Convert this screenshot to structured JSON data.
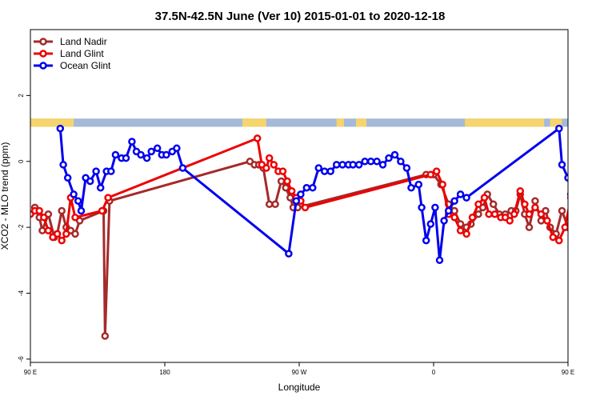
{
  "chart_data": {
    "type": "line",
    "title": "37.5N-42.5N June (Ver 10)   2015-01-01 to 2020-12-18",
    "xlabel": "Longitude",
    "ylabel": "XCO2 - MLO trend (ppm)",
    "xlim": [
      90,
      450
    ],
    "ylim": [
      -6.1,
      4.0
    ],
    "x_ticks": [
      {
        "value": 90,
        "label": "90 E"
      },
      {
        "value": 180,
        "label": "180"
      },
      {
        "value": 270,
        "label": "90 W"
      },
      {
        "value": 360,
        "label": "0"
      },
      {
        "value": 450,
        "label": "90 E"
      },
      {
        "value": 540,
        "label": "180"
      }
    ],
    "y_ticks": [
      {
        "value": -6,
        "label": "-6"
      },
      {
        "value": -4,
        "label": "-4"
      },
      {
        "value": -2,
        "label": "-2"
      },
      {
        "value": 0,
        "label": "0"
      },
      {
        "value": 2,
        "label": "2"
      }
    ],
    "legend_position": "top-left",
    "map_strip": {
      "y_range": [
        1.05,
        1.3
      ],
      "ocean_color": "#a4bad8",
      "land_color": "#f6d46e",
      "land_ranges": [
        [
          90,
          117
        ],
        [
          117,
          119
        ],
        [
          232,
          248
        ],
        [
          295,
          300
        ],
        [
          308,
          315
        ],
        [
          381,
          434
        ],
        [
          438,
          446
        ]
      ]
    },
    "series": [
      {
        "name": "Land Nadir",
        "color": "#a52a2a",
        "points": [
          [
            93,
            -1.4
          ],
          [
            96,
            -1.7
          ],
          [
            98,
            -2.1
          ],
          [
            102,
            -1.6
          ],
          [
            106,
            -2.3
          ],
          [
            108,
            -2.2
          ],
          [
            111,
            -1.5
          ],
          [
            114,
            -2.0
          ],
          [
            117,
            -2.1
          ],
          [
            120,
            -2.2
          ],
          [
            123,
            -1.8
          ],
          [
            139,
            -1.5
          ],
          [
            140,
            -5.3
          ],
          [
            143,
            -1.2
          ],
          [
            237,
            0.0
          ],
          [
            240,
            -0.1
          ],
          [
            243,
            -0.1
          ],
          [
            246,
            -0.2
          ],
          [
            250,
            -1.3
          ],
          [
            254,
            -1.3
          ],
          [
            258,
            -0.6
          ],
          [
            261,
            -0.8
          ],
          [
            264,
            -1.1
          ],
          [
            266,
            -1.4
          ],
          [
            269,
            -1.4
          ],
          [
            355,
            -0.4
          ],
          [
            360,
            -0.4
          ],
          [
            365,
            -0.7
          ],
          [
            370,
            -1.3
          ],
          [
            374,
            -1.5
          ],
          [
            378,
            -1.9
          ],
          [
            382,
            -2.0
          ],
          [
            385,
            -1.9
          ],
          [
            390,
            -1.6
          ],
          [
            393,
            -1.4
          ],
          [
            396,
            -1.0
          ],
          [
            400,
            -1.3
          ],
          [
            404,
            -1.6
          ],
          [
            408,
            -1.6
          ],
          [
            412,
            -1.5
          ],
          [
            415,
            -1.5
          ],
          [
            418,
            -1.0
          ],
          [
            421,
            -1.6
          ],
          [
            424,
            -2.0
          ],
          [
            428,
            -1.2
          ],
          [
            432,
            -1.8
          ],
          [
            435,
            -1.5
          ],
          [
            438,
            -2.0
          ],
          [
            442,
            -2.2
          ],
          [
            446,
            -1.5
          ],
          [
            450,
            -2.0
          ],
          [
            453,
            -2.1
          ],
          [
            456,
            -1.4
          ],
          [
            460,
            -5.3
          ],
          [
            462,
            -1.2
          ]
        ]
      },
      {
        "name": "Land Glint",
        "color": "#ee0000",
        "points": [
          [
            90,
            -1.6
          ],
          [
            93,
            -1.5
          ],
          [
            96,
            -1.5
          ],
          [
            99,
            -1.7
          ],
          [
            102,
            -2.1
          ],
          [
            105,
            -2.3
          ],
          [
            108,
            -2.2
          ],
          [
            111,
            -2.4
          ],
          [
            114,
            -2.2
          ],
          [
            117,
            -1.1
          ],
          [
            120,
            -1.7
          ],
          [
            138,
            -1.5
          ],
          [
            142,
            -1.1
          ],
          [
            242,
            0.7
          ],
          [
            245,
            -0.1
          ],
          [
            248,
            -0.2
          ],
          [
            250,
            0.1
          ],
          [
            253,
            -0.1
          ],
          [
            256,
            -0.3
          ],
          [
            259,
            -0.3
          ],
          [
            262,
            -0.6
          ],
          [
            265,
            -0.9
          ],
          [
            268,
            -1.1
          ],
          [
            271,
            -1.2
          ],
          [
            274,
            -1.4
          ],
          [
            358,
            -0.4
          ],
          [
            362,
            -0.3
          ],
          [
            366,
            -0.7
          ],
          [
            370,
            -1.6
          ],
          [
            374,
            -1.7
          ],
          [
            378,
            -2.1
          ],
          [
            382,
            -2.2
          ],
          [
            386,
            -1.7
          ],
          [
            390,
            -1.3
          ],
          [
            394,
            -1.1
          ],
          [
            397,
            -1.6
          ],
          [
            401,
            -1.6
          ],
          [
            405,
            -1.7
          ],
          [
            408,
            -1.7
          ],
          [
            411,
            -1.8
          ],
          [
            414,
            -1.6
          ],
          [
            418,
            -0.9
          ],
          [
            421,
            -1.3
          ],
          [
            424,
            -1.6
          ],
          [
            428,
            -1.4
          ],
          [
            432,
            -1.6
          ],
          [
            436,
            -1.8
          ],
          [
            440,
            -2.3
          ],
          [
            444,
            -2.4
          ],
          [
            448,
            -2.0
          ],
          [
            452,
            -1.1
          ],
          [
            456,
            -1.7
          ],
          [
            460,
            -1.5
          ],
          [
            462,
            -1.1
          ]
        ]
      },
      {
        "name": "Ocean Glint",
        "color": "#0000ee",
        "points": [
          [
            110,
            1.0
          ],
          [
            112,
            -0.1
          ],
          [
            115,
            -0.5
          ],
          [
            119,
            -1.0
          ],
          [
            122,
            -1.2
          ],
          [
            124,
            -1.5
          ],
          [
            127,
            -0.5
          ],
          [
            130,
            -0.6
          ],
          [
            134,
            -0.3
          ],
          [
            137,
            -0.8
          ],
          [
            141,
            -0.3
          ],
          [
            144,
            -0.3
          ],
          [
            147,
            0.2
          ],
          [
            151,
            0.1
          ],
          [
            154,
            0.1
          ],
          [
            158,
            0.6
          ],
          [
            161,
            0.3
          ],
          [
            164,
            0.2
          ],
          [
            168,
            0.1
          ],
          [
            171,
            0.3
          ],
          [
            175,
            0.4
          ],
          [
            178,
            0.2
          ],
          [
            181,
            0.2
          ],
          [
            185,
            0.3
          ],
          [
            188,
            0.4
          ],
          [
            192,
            -0.2
          ],
          [
            263,
            -2.8
          ],
          [
            268,
            -1.2
          ],
          [
            271,
            -1.0
          ],
          [
            275,
            -0.8
          ],
          [
            279,
            -0.8
          ],
          [
            283,
            -0.2
          ],
          [
            287,
            -0.3
          ],
          [
            291,
            -0.3
          ],
          [
            295,
            -0.1
          ],
          [
            299,
            -0.1
          ],
          [
            303,
            -0.1
          ],
          [
            306,
            -0.1
          ],
          [
            310,
            -0.1
          ],
          [
            314,
            0.0
          ],
          [
            318,
            0.0
          ],
          [
            322,
            0.0
          ],
          [
            326,
            -0.1
          ],
          [
            330,
            0.1
          ],
          [
            334,
            0.2
          ],
          [
            338,
            0.0
          ],
          [
            342,
            -0.2
          ],
          [
            345,
            -0.8
          ],
          [
            350,
            -0.7
          ],
          [
            352,
            -1.4
          ],
          [
            355,
            -2.4
          ],
          [
            358,
            -1.9
          ],
          [
            361,
            -1.4
          ],
          [
            364,
            -3.0
          ],
          [
            367,
            -1.8
          ],
          [
            370,
            -1.5
          ],
          [
            374,
            -1.2
          ],
          [
            378,
            -1.0
          ],
          [
            382,
            -1.1
          ],
          [
            444,
            1.0
          ],
          [
            446,
            -0.1
          ],
          [
            450,
            -0.5
          ],
          [
            452,
            -1.0
          ],
          [
            455,
            -1.5
          ],
          [
            458,
            -0.5
          ],
          [
            462,
            -0.7
          ],
          [
            466,
            -0.3
          ],
          [
            469,
            -0.8
          ],
          [
            473,
            -0.3
          ],
          [
            477,
            -0.2
          ],
          [
            480,
            0.2
          ],
          [
            484,
            0.1
          ]
        ]
      }
    ]
  }
}
